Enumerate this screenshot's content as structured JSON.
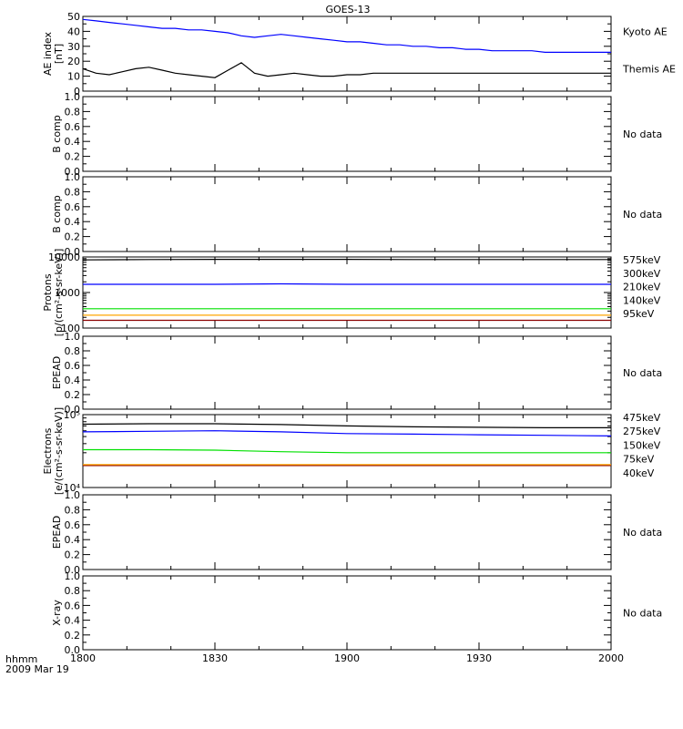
{
  "title": "GOES-13",
  "time_axis": {
    "ticks": [
      "1800",
      "1830",
      "1900",
      "1930",
      "2000"
    ],
    "unit_label": "hhmm",
    "date_label": "2009 Mar 19"
  },
  "chart_data": [
    {
      "type": "line",
      "ylabel": [
        "AE index",
        "[nT]"
      ],
      "ylim": [
        0,
        50
      ],
      "yticks": [
        "0",
        "10",
        "20",
        "30",
        "40",
        "50"
      ],
      "x_hours": [
        18.0,
        18.05,
        18.1,
        18.15,
        18.2,
        18.25,
        18.3,
        18.35,
        18.4,
        18.45,
        18.5,
        18.55,
        18.6,
        18.65,
        18.7,
        18.75,
        18.8,
        18.85,
        18.9,
        18.95,
        19.0,
        19.05,
        19.1,
        19.15,
        19.2,
        19.25,
        19.3,
        19.35,
        19.4,
        19.45,
        19.5,
        19.55,
        19.6,
        19.65,
        19.7,
        19.75,
        19.8,
        19.85,
        19.9,
        19.95,
        20.0
      ],
      "series": [
        {
          "name": "Kyoto AE",
          "color": "#0000ff",
          "values": [
            48,
            47,
            46,
            45,
            44,
            43,
            42,
            42,
            41,
            41,
            40,
            39,
            37,
            36,
            37,
            38,
            37,
            36,
            35,
            34,
            33,
            33,
            32,
            31,
            31,
            30,
            30,
            29,
            29,
            28,
            28,
            27,
            27,
            27,
            27,
            26,
            26,
            26,
            26,
            26,
            26
          ]
        },
        {
          "name": "Themis AE",
          "color": "#000000",
          "values": [
            15,
            12,
            11,
            13,
            15,
            16,
            14,
            12,
            11,
            10,
            9,
            14,
            19,
            12,
            10,
            11,
            12,
            11,
            10,
            10,
            11,
            11,
            12,
            12,
            12,
            12,
            12,
            12,
            12,
            12,
            12,
            12,
            12,
            12,
            12,
            12,
            12,
            12,
            12,
            12,
            12
          ]
        }
      ]
    },
    {
      "ylabel": [
        "B comp"
      ],
      "ylim": [
        0,
        1
      ],
      "yticks": [
        "0.0",
        "0.2",
        "0.4",
        "0.6",
        "0.8",
        "1.0"
      ],
      "status": "No data"
    },
    {
      "ylabel": [
        "B comp"
      ],
      "ylim": [
        0,
        1
      ],
      "yticks": [
        "0.0",
        "0.2",
        "0.4",
        "0.6",
        "0.8",
        "1.0"
      ],
      "status": "No data"
    },
    {
      "type": "line",
      "ylabel": [
        "Protons",
        "[p/(cm²-s-sr-keV)]"
      ],
      "scale": "log",
      "ylim": [
        100,
        10000
      ],
      "yticks": [
        "100",
        "1000",
        "10000"
      ],
      "x_hours": [
        18.0,
        18.25,
        18.5,
        18.75,
        19.0,
        19.25,
        19.5,
        19.75,
        20.0
      ],
      "series": [
        {
          "name": "575keV",
          "color": "#8b0000",
          "values": [
            165,
            165,
            165,
            165,
            165,
            165,
            165,
            165,
            165
          ]
        },
        {
          "name": "300keV",
          "color": "#ffa500",
          "values": [
            230,
            230,
            230,
            230,
            230,
            230,
            230,
            230,
            230
          ]
        },
        {
          "name": "210keV",
          "color": "#00e000",
          "values": [
            350,
            350,
            350,
            350,
            350,
            350,
            350,
            350,
            350
          ]
        },
        {
          "name": "140keV",
          "color": "#0000ff",
          "values": [
            1700,
            1700,
            1700,
            1750,
            1700,
            1700,
            1700,
            1700,
            1700
          ]
        },
        {
          "name": "95keV",
          "color": "#000000",
          "values": [
            8300,
            8500,
            8600,
            8600,
            8600,
            8500,
            8500,
            8500,
            8500
          ]
        }
      ]
    },
    {
      "ylabel": [
        "EPEAD"
      ],
      "ylim": [
        0,
        1
      ],
      "yticks": [
        "0.0",
        "0.2",
        "0.4",
        "0.6",
        "0.8",
        "1.0"
      ],
      "status": "No data"
    },
    {
      "type": "line",
      "ylabel": [
        "Electrons",
        "[e/(cm²-s-sr-keV)]"
      ],
      "scale": "log",
      "ylim": [
        10000,
        100000
      ],
      "yticks": [
        "10⁴",
        "10⁵"
      ],
      "x_hours": [
        18.0,
        18.25,
        18.5,
        18.75,
        19.0,
        19.25,
        19.5,
        19.75,
        20.0
      ],
      "series": [
        {
          "name": "475keV",
          "color": "#8b0000",
          "values": [
            20000,
            20000,
            20000,
            20000,
            20000,
            20000,
            20000,
            20000,
            20000
          ]
        },
        {
          "name": "275keV",
          "color": "#ffa500",
          "values": [
            20600,
            20600,
            20600,
            20600,
            20600,
            20600,
            20600,
            20600,
            20600
          ]
        },
        {
          "name": "150keV",
          "color": "#00e000",
          "values": [
            33000,
            33000,
            32500,
            31000,
            30000,
            30000,
            30000,
            30000,
            30000
          ]
        },
        {
          "name": "75keV",
          "color": "#0000ff",
          "values": [
            58000,
            59000,
            60000,
            58000,
            55000,
            54000,
            53000,
            52000,
            51000
          ]
        },
        {
          "name": "40keV",
          "color": "#000000",
          "values": [
            74000,
            75000,
            75000,
            73000,
            70000,
            68000,
            67000,
            66000,
            66000
          ]
        }
      ]
    },
    {
      "ylabel": [
        "EPEAD"
      ],
      "ylim": [
        0,
        1
      ],
      "yticks": [
        "0.0",
        "0.2",
        "0.4",
        "0.6",
        "0.8",
        "1.0"
      ],
      "status": "No data"
    },
    {
      "ylabel": [
        "X-ray"
      ],
      "ylim": [
        0,
        1
      ],
      "yticks": [
        "0.0",
        "0.2",
        "0.4",
        "0.6",
        "0.8",
        "1.0"
      ],
      "status": "No data"
    }
  ]
}
